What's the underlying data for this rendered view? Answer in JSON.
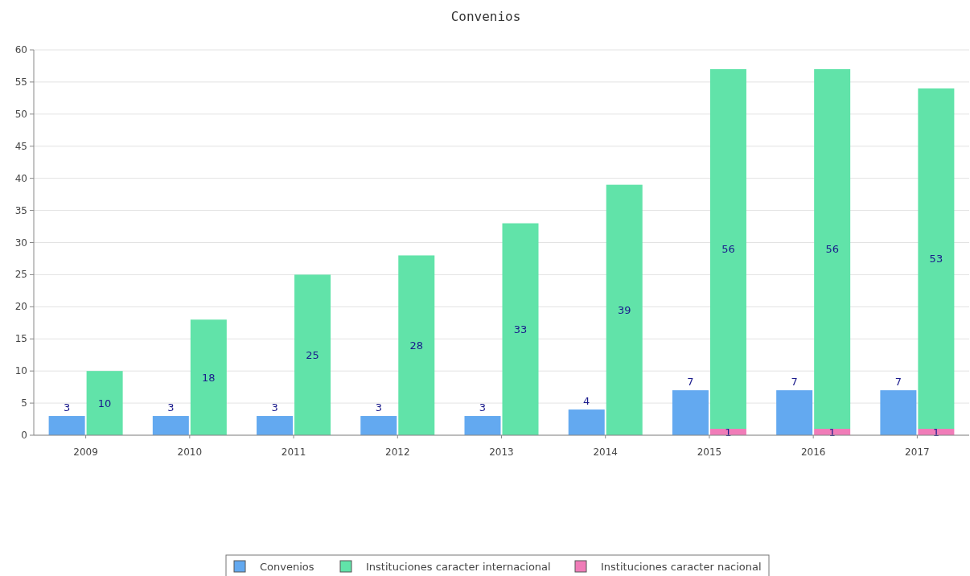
{
  "chart_data": {
    "type": "bar",
    "title": "Convenios",
    "categories": [
      "2009",
      "2010",
      "2011",
      "2012",
      "2013",
      "2014",
      "2015",
      "2016",
      "2017"
    ],
    "series": [
      {
        "name": "Convenios",
        "color": "#63a9f0",
        "values": [
          3,
          3,
          3,
          3,
          3,
          4,
          7,
          7,
          7
        ]
      },
      {
        "name": "Instituciones caracter internacional",
        "color": "#61e3a9",
        "values": [
          10,
          18,
          25,
          28,
          33,
          39,
          56,
          56,
          53
        ],
        "base": [
          0,
          0,
          0,
          0,
          0,
          0,
          1,
          1,
          1
        ]
      },
      {
        "name": "Instituciones caracter nacional",
        "color": "#f07cb8",
        "values": [
          null,
          null,
          null,
          null,
          null,
          null,
          1,
          1,
          1
        ],
        "base": [
          null,
          null,
          null,
          null,
          null,
          null,
          0,
          0,
          0
        ]
      }
    ],
    "ylim": [
      0,
      60
    ],
    "yticks": [
      0,
      5,
      10,
      15,
      20,
      25,
      30,
      35,
      40,
      45,
      50,
      55,
      60
    ],
    "grid": "y",
    "legend": "bottom",
    "data_labels": true
  }
}
